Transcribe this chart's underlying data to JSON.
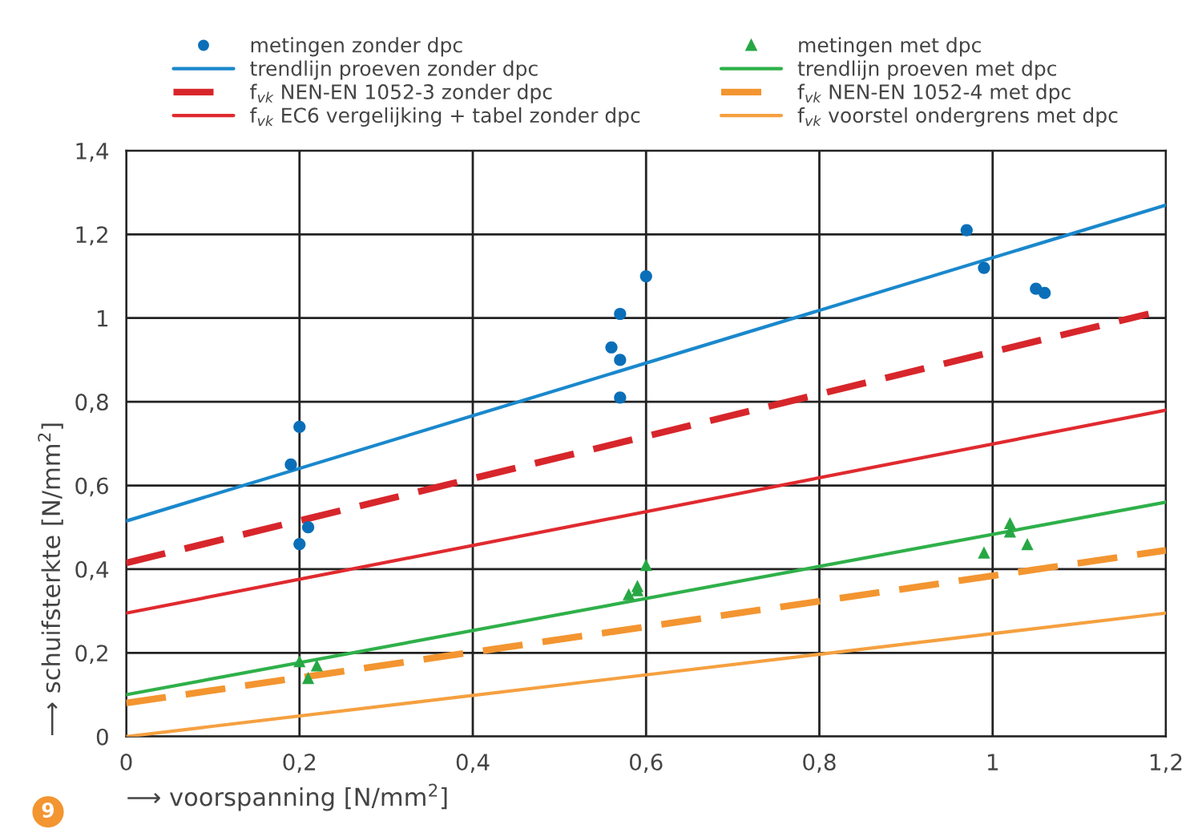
{
  "chart_data": {
    "type": "scatter",
    "xlabel": "⟶ voorspanning [N/mm$^{2}$]",
    "ylabel": "⟶ schuifsterkte [N/mm$^{2}$]",
    "xlim": [
      0,
      1.2
    ],
    "ylim": [
      0,
      1.4
    ],
    "xticks": [
      0,
      {
        "value": 0.2,
        "label": "0,2"
      },
      {
        "value": 0.4,
        "label": "0,4"
      },
      {
        "value": 0.6,
        "label": "0,6"
      },
      {
        "value": 0.8,
        "label": "0,8"
      },
      1,
      {
        "value": 1.2,
        "label": "1,2"
      }
    ],
    "yticks": [
      0,
      {
        "value": 0.2,
        "label": "0,2"
      },
      {
        "value": 0.4,
        "label": "0,4"
      },
      {
        "value": 0.6,
        "label": "0,6"
      },
      {
        "value": 0.8,
        "label": "0,8"
      },
      1,
      {
        "value": 1.2,
        "label": "1,2"
      },
      {
        "value": 1.4,
        "label": "1,4"
      }
    ],
    "grid": true,
    "legend": "top",
    "annotations": [
      "9"
    ],
    "series": [
      {
        "name": "metingen zonder dpc",
        "marker": "circle",
        "color": "#0a6fb8",
        "x": [
          0.19,
          0.2,
          0.2,
          0.21,
          0.56,
          0.57,
          0.57,
          0.57,
          0.6,
          0.97,
          0.99,
          1.05,
          1.06
        ],
        "values": [
          0.65,
          0.74,
          0.46,
          0.5,
          0.93,
          1.01,
          0.9,
          0.81,
          1.1,
          1.21,
          1.12,
          1.07,
          1.06
        ]
      },
      {
        "name": "trendlijn proeven zonder dpc",
        "type": "line",
        "line_style": "solid",
        "color": "#1a88cc",
        "x": [
          0,
          1.2
        ],
        "values": [
          0.515,
          1.27
        ]
      },
      {
        "name": "f$_{vk}$ NEN-EN 1052-3 zonder dpc",
        "type": "line",
        "line_style": "dashed",
        "color": "#d7262b",
        "x": [
          0,
          1.18
        ],
        "values": [
          0.415,
          1.01
        ]
      },
      {
        "name": "f$_{vk}$ EC6 vergelijking + tabel zonder dpc",
        "type": "line",
        "line_style": "solid",
        "color": "#e02a2f",
        "x": [
          0,
          1.2
        ],
        "values": [
          0.295,
          0.78
        ]
      },
      {
        "name": "metingen met dpc",
        "marker": "triangle",
        "color": "#27a744",
        "x": [
          0.2,
          0.21,
          0.22,
          0.58,
          0.59,
          0.59,
          0.6,
          0.99,
          1.02,
          1.02,
          1.04
        ],
        "values": [
          0.18,
          0.14,
          0.17,
          0.34,
          0.35,
          0.36,
          0.41,
          0.44,
          0.49,
          0.51,
          0.46
        ]
      },
      {
        "name": "trendlijn proeven met dpc",
        "type": "line",
        "line_style": "solid",
        "color": "#2fb04a",
        "x": [
          0,
          1.2
        ],
        "values": [
          0.1,
          0.56
        ]
      },
      {
        "name": "f$_{vk}$ NEN-EN 1052-4 met dpc",
        "type": "line",
        "line_style": "dashed",
        "color": "#f39530",
        "x": [
          0,
          1.2
        ],
        "values": [
          0.08,
          0.445
        ]
      },
      {
        "name": "f$_{vk}$ voorstel ondergrens met dpc",
        "type": "line",
        "line_style": "solid",
        "color": "#f5a040",
        "x": [
          0,
          1.2
        ],
        "values": [
          0.0,
          0.295
        ]
      }
    ]
  }
}
